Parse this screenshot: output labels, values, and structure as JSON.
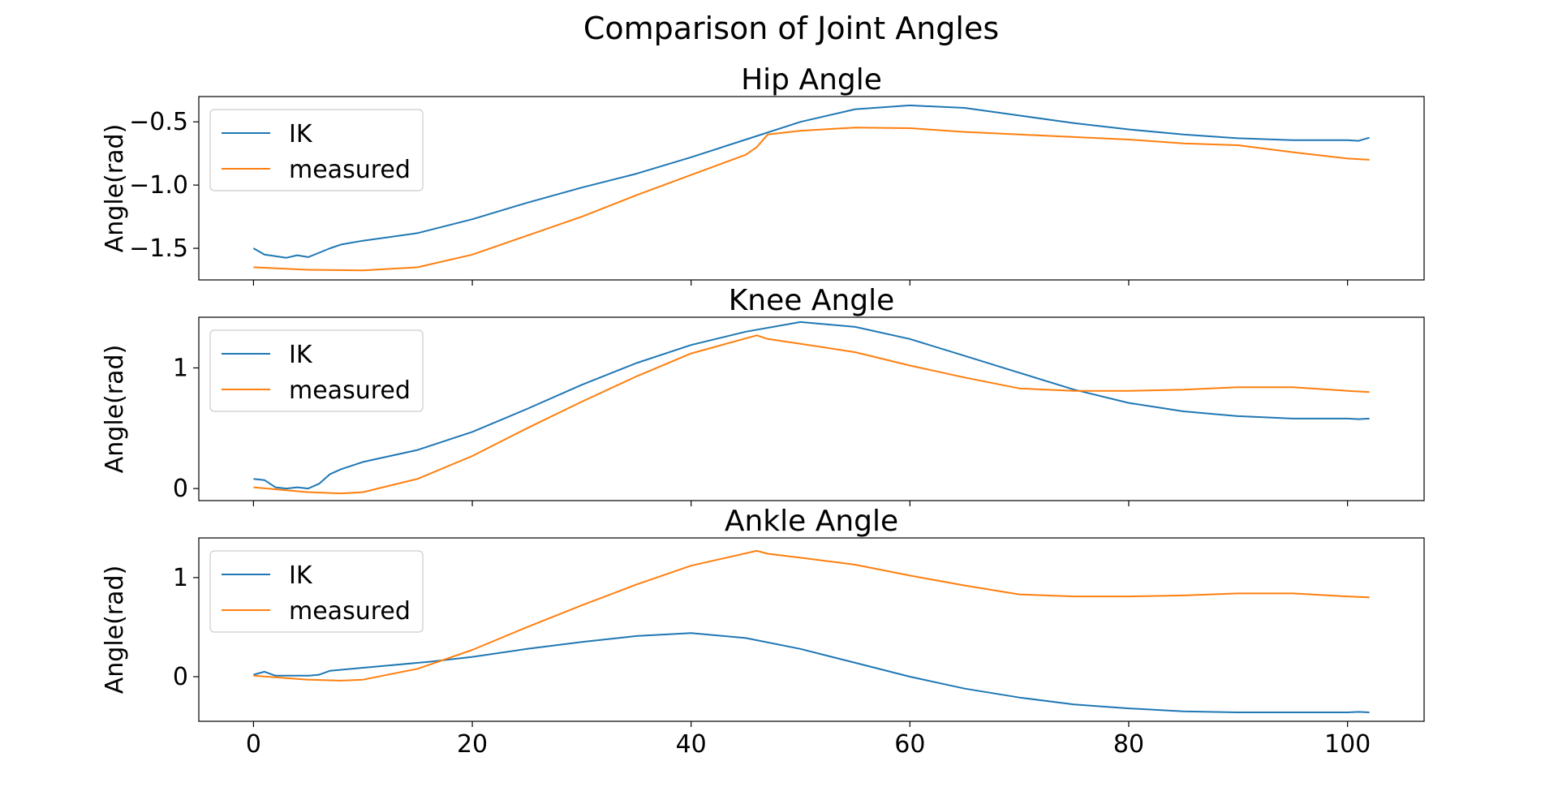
{
  "figure": {
    "title": "Comparison of Joint Angles"
  },
  "colors": {
    "IK": "#1f77b4",
    "measured": "#ff7f0e"
  },
  "chart_data": [
    {
      "type": "line",
      "title": "Hip Angle",
      "xlabel": "",
      "ylabel": "Angle(rad)",
      "xlim": [
        -5,
        107
      ],
      "ylim": [
        -1.75,
        -0.3
      ],
      "xticks": [
        0,
        20,
        40,
        60,
        80,
        100
      ],
      "xtick_labels": [
        "0",
        "20",
        "40",
        "60",
        "80",
        "100"
      ],
      "show_xtick_labels": false,
      "yticks": [
        -1.5,
        -1.0,
        -0.5
      ],
      "ytick_labels": [
        "−1.5",
        "−1.0",
        "−0.5"
      ],
      "grid": false,
      "legend": "upper-left",
      "series": [
        {
          "name": "IK",
          "color": "#1f77b4",
          "x": [
            0,
            1,
            3,
            4,
            5,
            6,
            7,
            8,
            10,
            15,
            20,
            25,
            30,
            35,
            40,
            45,
            50,
            55,
            60,
            65,
            70,
            75,
            80,
            85,
            90,
            95,
            100,
            101,
            102
          ],
          "y": [
            -1.5,
            -1.55,
            -1.575,
            -1.555,
            -1.57,
            -1.535,
            -1.5,
            -1.47,
            -1.44,
            -1.38,
            -1.27,
            -1.14,
            -1.02,
            -0.91,
            -0.78,
            -0.64,
            -0.5,
            -0.4,
            -0.37,
            -0.39,
            -0.45,
            -0.51,
            -0.56,
            -0.6,
            -0.63,
            -0.645,
            -0.645,
            -0.65,
            -0.625
          ]
        },
        {
          "name": "measured",
          "color": "#ff7f0e",
          "x": [
            0,
            5,
            10,
            15,
            20,
            25,
            30,
            35,
            40,
            45,
            46,
            47,
            50,
            55,
            60,
            65,
            70,
            75,
            80,
            85,
            90,
            95,
            100,
            102
          ],
          "y": [
            -1.65,
            -1.67,
            -1.675,
            -1.65,
            -1.55,
            -1.4,
            -1.25,
            -1.08,
            -0.92,
            -0.76,
            -0.7,
            -0.6,
            -0.57,
            -0.545,
            -0.55,
            -0.58,
            -0.6,
            -0.62,
            -0.64,
            -0.67,
            -0.685,
            -0.74,
            -0.79,
            -0.8
          ]
        }
      ]
    },
    {
      "type": "line",
      "title": "Knee Angle",
      "xlabel": "",
      "ylabel": "Angle(rad)",
      "xlim": [
        -5,
        107
      ],
      "ylim": [
        -0.1,
        1.42
      ],
      "xticks": [
        0,
        20,
        40,
        60,
        80,
        100
      ],
      "xtick_labels": [
        "0",
        "20",
        "40",
        "60",
        "80",
        "100"
      ],
      "show_xtick_labels": false,
      "yticks": [
        0,
        1
      ],
      "ytick_labels": [
        "0",
        "1"
      ],
      "grid": false,
      "legend": "upper-left",
      "series": [
        {
          "name": "IK",
          "color": "#1f77b4",
          "x": [
            0,
            1,
            2,
            3,
            4,
            5,
            6,
            7,
            8,
            10,
            15,
            20,
            25,
            30,
            35,
            40,
            45,
            50,
            55,
            60,
            65,
            70,
            75,
            80,
            85,
            90,
            95,
            100,
            101,
            102
          ],
          "y": [
            0.08,
            0.07,
            0.01,
            0.0,
            0.01,
            0.0,
            0.04,
            0.12,
            0.16,
            0.22,
            0.32,
            0.47,
            0.66,
            0.86,
            1.04,
            1.19,
            1.3,
            1.38,
            1.34,
            1.24,
            1.1,
            0.96,
            0.82,
            0.71,
            0.64,
            0.6,
            0.58,
            0.58,
            0.575,
            0.58
          ]
        },
        {
          "name": "measured",
          "color": "#ff7f0e",
          "x": [
            0,
            5,
            8,
            10,
            15,
            20,
            25,
            30,
            35,
            40,
            46,
            47,
            50,
            55,
            60,
            65,
            70,
            75,
            80,
            85,
            90,
            95,
            100,
            102
          ],
          "y": [
            0.01,
            -0.03,
            -0.04,
            -0.03,
            0.08,
            0.27,
            0.5,
            0.72,
            0.93,
            1.12,
            1.27,
            1.24,
            1.2,
            1.13,
            1.02,
            0.92,
            0.83,
            0.81,
            0.81,
            0.82,
            0.84,
            0.84,
            0.81,
            0.8
          ]
        }
      ]
    },
    {
      "type": "line",
      "title": "Ankle Angle",
      "xlabel": "",
      "ylabel": "Angle(rad)",
      "xlim": [
        -5,
        107
      ],
      "ylim": [
        -0.45,
        1.4
      ],
      "xticks": [
        0,
        20,
        40,
        60,
        80,
        100
      ],
      "xtick_labels": [
        "0",
        "20",
        "40",
        "60",
        "80",
        "100"
      ],
      "show_xtick_labels": true,
      "yticks": [
        0,
        1
      ],
      "ytick_labels": [
        "0",
        "1"
      ],
      "grid": false,
      "legend": "upper-left",
      "series": [
        {
          "name": "IK",
          "color": "#1f77b4",
          "x": [
            0,
            1,
            2,
            3,
            5,
            6,
            7,
            9,
            12,
            16,
            20,
            25,
            30,
            35,
            40,
            45,
            50,
            55,
            60,
            65,
            70,
            75,
            80,
            85,
            90,
            95,
            100,
            101,
            102
          ],
          "y": [
            0.02,
            0.05,
            0.01,
            0.01,
            0.01,
            0.02,
            0.06,
            0.08,
            0.11,
            0.15,
            0.2,
            0.28,
            0.35,
            0.41,
            0.44,
            0.39,
            0.28,
            0.14,
            0.0,
            -0.12,
            -0.21,
            -0.28,
            -0.32,
            -0.35,
            -0.36,
            -0.36,
            -0.36,
            -0.355,
            -0.36
          ]
        },
        {
          "name": "measured",
          "color": "#ff7f0e",
          "x": [
            0,
            5,
            8,
            10,
            15,
            20,
            25,
            30,
            35,
            40,
            46,
            47,
            50,
            55,
            60,
            65,
            70,
            75,
            80,
            85,
            90,
            95,
            100,
            102
          ],
          "y": [
            0.01,
            -0.03,
            -0.04,
            -0.03,
            0.08,
            0.27,
            0.5,
            0.72,
            0.93,
            1.12,
            1.27,
            1.24,
            1.2,
            1.13,
            1.02,
            0.92,
            0.83,
            0.81,
            0.81,
            0.82,
            0.84,
            0.84,
            0.81,
            0.8
          ]
        }
      ]
    }
  ]
}
